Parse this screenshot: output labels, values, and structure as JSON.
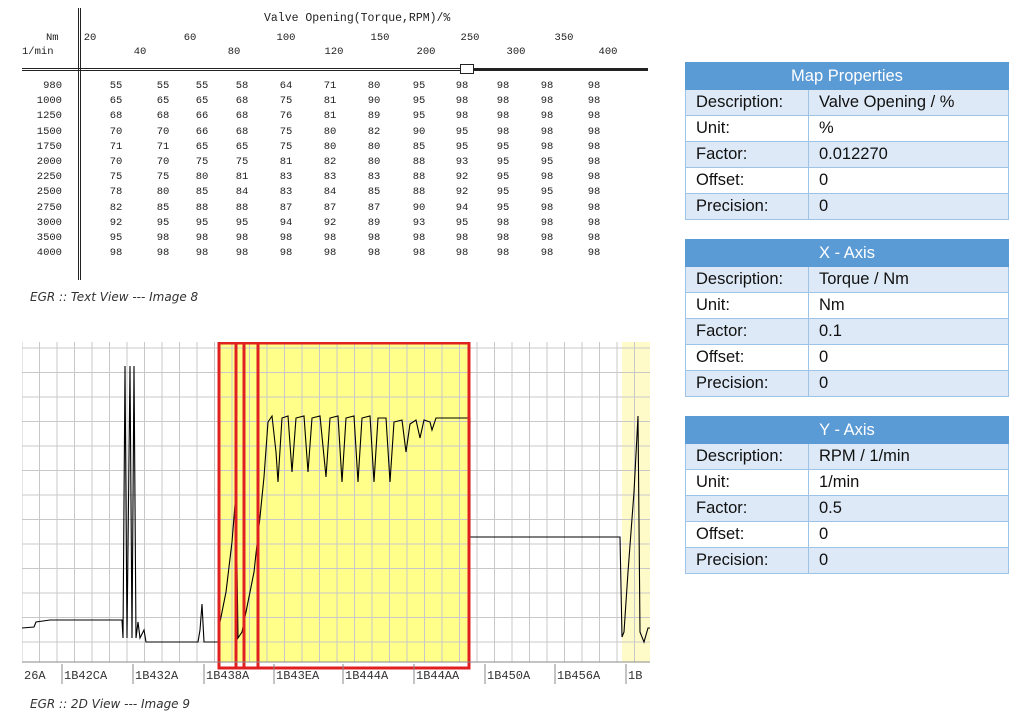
{
  "text_view": {
    "title": "Valve Opening(Torque,RPM)/%",
    "x_unit_label": "Nm",
    "y_unit_label": "1/min",
    "x_ticks_row1": [
      "20",
      "60",
      "100",
      "150",
      "250",
      "350"
    ],
    "x_ticks_row2": [
      "40",
      "80",
      "120",
      "200",
      "300",
      "400"
    ],
    "rows": [
      {
        "rpm": "980",
        "values": [
          "55",
          "55",
          "55",
          "58",
          "64",
          "71",
          "80",
          "95",
          "98",
          "98",
          "98",
          "98"
        ]
      },
      {
        "rpm": "1000",
        "values": [
          "65",
          "65",
          "65",
          "68",
          "75",
          "81",
          "90",
          "95",
          "98",
          "98",
          "98",
          "98"
        ]
      },
      {
        "rpm": "1250",
        "values": [
          "68",
          "68",
          "66",
          "68",
          "76",
          "81",
          "89",
          "95",
          "98",
          "98",
          "98",
          "98"
        ]
      },
      {
        "rpm": "1500",
        "values": [
          "70",
          "70",
          "66",
          "68",
          "75",
          "80",
          "82",
          "90",
          "95",
          "98",
          "98",
          "98"
        ]
      },
      {
        "rpm": "1750",
        "values": [
          "71",
          "71",
          "65",
          "65",
          "75",
          "80",
          "80",
          "85",
          "95",
          "95",
          "98",
          "98"
        ]
      },
      {
        "rpm": "2000",
        "values": [
          "70",
          "70",
          "75",
          "75",
          "81",
          "82",
          "80",
          "88",
          "93",
          "95",
          "95",
          "98"
        ]
      },
      {
        "rpm": "2250",
        "values": [
          "75",
          "75",
          "80",
          "81",
          "83",
          "83",
          "83",
          "88",
          "92",
          "95",
          "98",
          "98"
        ]
      },
      {
        "rpm": "2500",
        "values": [
          "78",
          "80",
          "85",
          "84",
          "83",
          "84",
          "85",
          "88",
          "92",
          "95",
          "95",
          "98"
        ]
      },
      {
        "rpm": "2750",
        "values": [
          "82",
          "85",
          "88",
          "88",
          "87",
          "87",
          "87",
          "90",
          "94",
          "95",
          "98",
          "98"
        ]
      },
      {
        "rpm": "3000",
        "values": [
          "92",
          "95",
          "95",
          "95",
          "94",
          "92",
          "89",
          "93",
          "95",
          "98",
          "98",
          "98"
        ]
      },
      {
        "rpm": "3500",
        "values": [
          "95",
          "98",
          "98",
          "98",
          "98",
          "98",
          "98",
          "98",
          "98",
          "98",
          "98",
          "98"
        ]
      },
      {
        "rpm": "4000",
        "values": [
          "98",
          "98",
          "98",
          "98",
          "98",
          "98",
          "98",
          "98",
          "98",
          "98",
          "98",
          "98"
        ]
      }
    ],
    "caption": "EGR :: Text View --- Image 8"
  },
  "view_2d": {
    "address_labels": [
      "26A",
      "1B42CA",
      "1B432A",
      "1B438A",
      "1B43EA",
      "1B444A",
      "1B44AA",
      "1B450A",
      "1B456A",
      "1B"
    ],
    "caption": "EGR :: 2D View --- Image 9",
    "colors": {
      "highlight": "#ffff8a",
      "highlight_faint": "#fffbc8",
      "selection": "#e02020",
      "grid": "#c8c8c8",
      "line": "#000000"
    }
  },
  "map_properties": {
    "header": "Map Properties",
    "rows": [
      {
        "key": "Description:",
        "value": "Valve Opening / %"
      },
      {
        "key": "Unit:",
        "value": "%"
      },
      {
        "key": "Factor:",
        "value": "0.012270"
      },
      {
        "key": "Offset:",
        "value": "0"
      },
      {
        "key": "Precision:",
        "value": "0"
      }
    ]
  },
  "x_axis": {
    "header": "X - Axis",
    "rows": [
      {
        "key": "Description:",
        "value": "Torque / Nm"
      },
      {
        "key": "Unit:",
        "value": "Nm"
      },
      {
        "key": "Factor:",
        "value": "0.1"
      },
      {
        "key": "Offset:",
        "value": "0"
      },
      {
        "key": "Precision:",
        "value": "0"
      }
    ]
  },
  "y_axis": {
    "header": "Y - Axis",
    "rows": [
      {
        "key": "Description:",
        "value": "RPM / 1/min"
      },
      {
        "key": "Unit:",
        "value": "1/min"
      },
      {
        "key": "Factor:",
        "value": "0.5"
      },
      {
        "key": "Offset:",
        "value": "0"
      },
      {
        "key": "Precision:",
        "value": "0"
      }
    ]
  }
}
